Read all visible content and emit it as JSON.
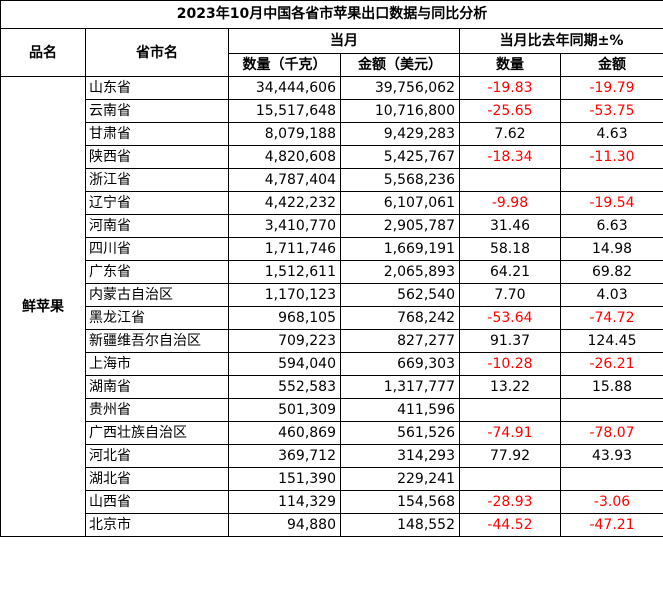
{
  "title": "2023年10月中国各省市苹果出口数据与同比分析",
  "headers": {
    "product": "品名",
    "province": "省市名",
    "current_month": "当月",
    "yoy": "当月比去年同期±%",
    "quantity": "数量（千克）",
    "amount": "金额（美元）",
    "qty_pct": "数量",
    "amt_pct": "金额"
  },
  "product_name": "鲜苹果",
  "rows": [
    {
      "province": "山东省",
      "quantity": "34,444,606",
      "amount": "39,756,062",
      "qty_pct": "-19.83",
      "amt_pct": "-19.79"
    },
    {
      "province": "云南省",
      "quantity": "15,517,648",
      "amount": "10,716,800",
      "qty_pct": "-25.65",
      "amt_pct": "-53.75"
    },
    {
      "province": "甘肃省",
      "quantity": "8,079,188",
      "amount": "9,429,283",
      "qty_pct": "7.62",
      "amt_pct": "4.63"
    },
    {
      "province": "陕西省",
      "quantity": "4,820,608",
      "amount": "5,425,767",
      "qty_pct": "-18.34",
      "amt_pct": "-11.30"
    },
    {
      "province": "浙江省",
      "quantity": "4,787,404",
      "amount": "5,568,236",
      "qty_pct": "",
      "amt_pct": ""
    },
    {
      "province": "辽宁省",
      "quantity": "4,422,232",
      "amount": "6,107,061",
      "qty_pct": "-9.98",
      "amt_pct": "-19.54"
    },
    {
      "province": "河南省",
      "quantity": "3,410,770",
      "amount": "2,905,787",
      "qty_pct": "31.46",
      "amt_pct": "6.63"
    },
    {
      "province": "四川省",
      "quantity": "1,711,746",
      "amount": "1,669,191",
      "qty_pct": "58.18",
      "amt_pct": "14.98"
    },
    {
      "province": "广东省",
      "quantity": "1,512,611",
      "amount": "2,065,893",
      "qty_pct": "64.21",
      "amt_pct": "69.82"
    },
    {
      "province": "内蒙古自治区",
      "quantity": "1,170,123",
      "amount": "562,540",
      "qty_pct": "7.70",
      "amt_pct": "4.03"
    },
    {
      "province": "黑龙江省",
      "quantity": "968,105",
      "amount": "768,242",
      "qty_pct": "-53.64",
      "amt_pct": "-74.72"
    },
    {
      "province": "新疆维吾尔自治区",
      "quantity": "709,223",
      "amount": "827,277",
      "qty_pct": "91.37",
      "amt_pct": "124.45"
    },
    {
      "province": "上海市",
      "quantity": "594,040",
      "amount": "669,303",
      "qty_pct": "-10.28",
      "amt_pct": "-26.21"
    },
    {
      "province": "湖南省",
      "quantity": "552,583",
      "amount": "1,317,777",
      "qty_pct": "13.22",
      "amt_pct": "15.88"
    },
    {
      "province": "贵州省",
      "quantity": "501,309",
      "amount": "411,596",
      "qty_pct": "",
      "amt_pct": ""
    },
    {
      "province": "广西壮族自治区",
      "quantity": "460,869",
      "amount": "561,526",
      "qty_pct": "-74.91",
      "amt_pct": "-78.07"
    },
    {
      "province": "河北省",
      "quantity": "369,712",
      "amount": "314,293",
      "qty_pct": "77.92",
      "amt_pct": "43.93"
    },
    {
      "province": "湖北省",
      "quantity": "151,390",
      "amount": "229,241",
      "qty_pct": "",
      "amt_pct": ""
    },
    {
      "province": "山西省",
      "quantity": "114,329",
      "amount": "154,568",
      "qty_pct": "-28.93",
      "amt_pct": "-3.06"
    },
    {
      "province": "北京市",
      "quantity": "94,880",
      "amount": "148,552",
      "qty_pct": "-44.52",
      "amt_pct": "-47.21"
    }
  ]
}
